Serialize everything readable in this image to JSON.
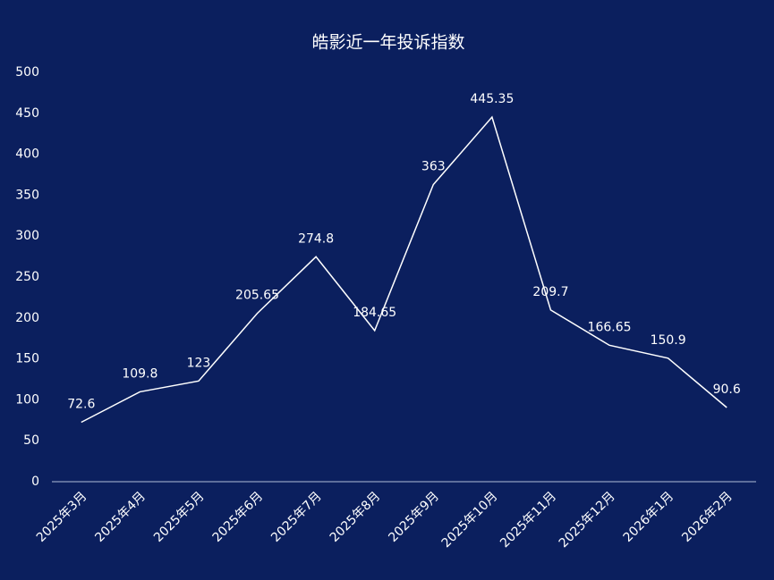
{
  "chart_data": {
    "type": "line",
    "title": "皓影近一年投诉指数",
    "categories": [
      "2025年3月",
      "2025年4月",
      "2025年5月",
      "2025年6月",
      "2025年7月",
      "2025年8月",
      "2025年9月",
      "2025年10月",
      "2025年11月",
      "2025年12月",
      "2026年1月",
      "2026年2月"
    ],
    "values": [
      72.6,
      109.8,
      123,
      205.65,
      274.8,
      184.65,
      363,
      445.35,
      209.7,
      166.65,
      150.9,
      90.6
    ],
    "color": "#ffffff",
    "ylim": [
      0,
      500
    ],
    "yticks": [
      0,
      50,
      100,
      150,
      200,
      250,
      300,
      350,
      400,
      450,
      500
    ],
    "grid": false
  }
}
